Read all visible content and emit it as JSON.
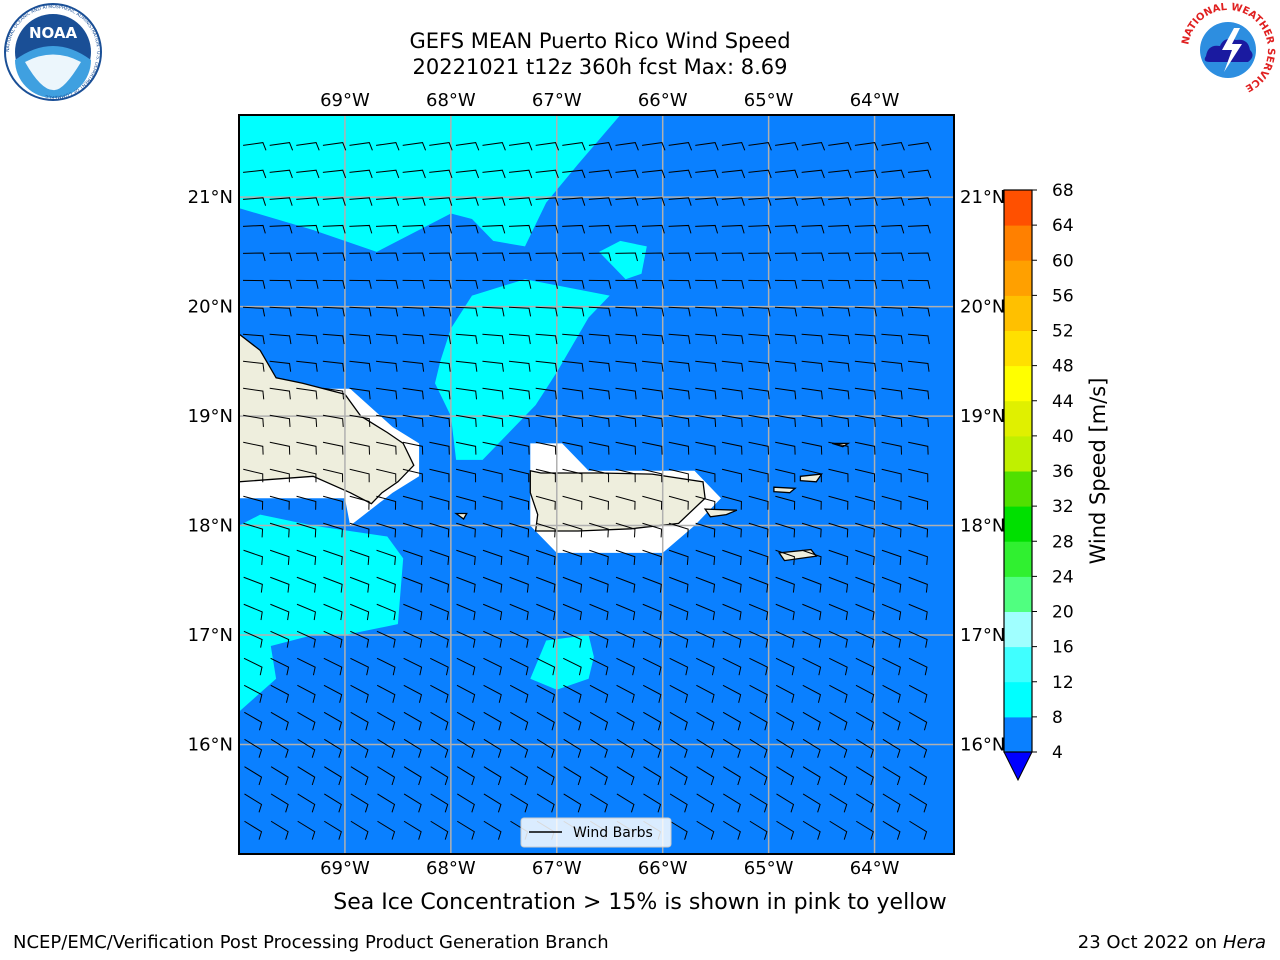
{
  "header": {
    "title_line1": "GEFS MEAN Puerto Rico Wind Speed",
    "title_line2": "20221021 t12z 360h fcst   Max: 8.69"
  },
  "logos": {
    "left": {
      "name": "noaa-logo",
      "text": "NOAA",
      "ring_text": "NATIONAL OCEANIC AND ATMOSPHERIC ADMINISTRATION · U.S. DEPARTMENT OF COMMERCE"
    },
    "right": {
      "name": "nws-logo",
      "ring_text": "NATIONAL WEATHER SERVICE"
    }
  },
  "map": {
    "extent": {
      "lon_min": -70.0,
      "lon_max": -63.25,
      "lat_min": 15.0,
      "lat_max": 21.75
    },
    "lon_ticks": [
      {
        "value": -69,
        "label": "69°W"
      },
      {
        "value": -68,
        "label": "68°W"
      },
      {
        "value": -67,
        "label": "67°W"
      },
      {
        "value": -66,
        "label": "66°W"
      },
      {
        "value": -65,
        "label": "65°W"
      },
      {
        "value": -64,
        "label": "64°W"
      }
    ],
    "lat_ticks": [
      {
        "value": 21,
        "label": "21°N"
      },
      {
        "value": 20,
        "label": "20°N"
      },
      {
        "value": 19,
        "label": "19°N"
      },
      {
        "value": 18,
        "label": "18°N"
      },
      {
        "value": 17,
        "label": "17°N"
      },
      {
        "value": 16,
        "label": "16°N"
      }
    ],
    "legend_label": "Wind Barbs",
    "colors": {
      "ocean": "#0a80ff",
      "cyan_zone": "#00ffff",
      "land": "#eeeedd",
      "coast": "#000000",
      "grid": "#b0b0b0"
    },
    "cyan_regions": [
      {
        "name": "cyan-region-north",
        "lonlat": [
          [
            -70,
            21.75
          ],
          [
            -66.4,
            21.75
          ],
          [
            -66.8,
            21.3
          ],
          [
            -67.1,
            20.95
          ],
          [
            -67.3,
            20.55
          ],
          [
            -67.6,
            20.6
          ],
          [
            -67.8,
            20.8
          ],
          [
            -68.0,
            20.85
          ],
          [
            -68.7,
            20.5
          ],
          [
            -69.3,
            20.7
          ],
          [
            -70,
            20.9
          ]
        ]
      },
      {
        "name": "cyan-region-central",
        "lonlat": [
          [
            -67.8,
            20.1
          ],
          [
            -67.3,
            20.25
          ],
          [
            -66.5,
            20.1
          ],
          [
            -66.7,
            19.9
          ],
          [
            -67.0,
            19.4
          ],
          [
            -67.2,
            19.1
          ],
          [
            -67.4,
            18.9
          ],
          [
            -67.7,
            18.6
          ],
          [
            -67.95,
            18.6
          ],
          [
            -68.0,
            19.0
          ],
          [
            -68.15,
            19.3
          ],
          [
            -68.1,
            19.5
          ],
          [
            -68.0,
            19.8
          ]
        ]
      },
      {
        "name": "cyan-region-small-east",
        "lonlat": [
          [
            -66.6,
            20.5
          ],
          [
            -66.4,
            20.6
          ],
          [
            -66.15,
            20.55
          ],
          [
            -66.2,
            20.3
          ],
          [
            -66.35,
            20.25
          ]
        ]
      },
      {
        "name": "cyan-region-southwest",
        "lonlat": [
          [
            -70,
            18.0
          ],
          [
            -69.8,
            18.1
          ],
          [
            -69.3,
            18.0
          ],
          [
            -68.6,
            17.9
          ],
          [
            -68.45,
            17.7
          ],
          [
            -68.5,
            17.1
          ],
          [
            -69.0,
            17.0
          ],
          [
            -69.3,
            17.0
          ],
          [
            -69.7,
            16.9
          ],
          [
            -69.65,
            16.6
          ],
          [
            -70,
            16.3
          ]
        ]
      },
      {
        "name": "cyan-region-south",
        "lonlat": [
          [
            -67.25,
            16.6
          ],
          [
            -67.1,
            16.95
          ],
          [
            -66.7,
            17.0
          ],
          [
            -66.65,
            16.8
          ],
          [
            -66.7,
            16.6
          ],
          [
            -67.0,
            16.5
          ]
        ]
      }
    ],
    "white_regions": [
      {
        "name": "white-zone-hispaniola",
        "lonlat": [
          [
            -70,
            19.25
          ],
          [
            -68.95,
            19.25
          ],
          [
            -68.55,
            18.9
          ],
          [
            -68.3,
            18.75
          ],
          [
            -68.3,
            18.45
          ],
          [
            -68.55,
            18.3
          ],
          [
            -68.95,
            18.0
          ],
          [
            -69.0,
            18.25
          ],
          [
            -70,
            18.25
          ]
        ]
      },
      {
        "name": "white-zone-puerto-rico",
        "lonlat": [
          [
            -67.25,
            18.75
          ],
          [
            -66.95,
            18.75
          ],
          [
            -66.7,
            18.5
          ],
          [
            -65.7,
            18.5
          ],
          [
            -65.45,
            18.25
          ],
          [
            -65.7,
            18.0
          ],
          [
            -66.0,
            17.75
          ],
          [
            -67.0,
            17.75
          ],
          [
            -67.25,
            18.0
          ]
        ]
      }
    ],
    "land_regions": [
      {
        "name": "hispaniola-land",
        "lonlat": [
          [
            -70,
            19.75
          ],
          [
            -69.8,
            19.6
          ],
          [
            -69.65,
            19.35
          ],
          [
            -69.4,
            19.3
          ],
          [
            -69.0,
            19.2
          ],
          [
            -68.85,
            19.0
          ],
          [
            -68.6,
            18.85
          ],
          [
            -68.45,
            18.75
          ],
          [
            -68.35,
            18.55
          ],
          [
            -68.5,
            18.4
          ],
          [
            -68.65,
            18.3
          ],
          [
            -68.75,
            18.2
          ],
          [
            -68.95,
            18.3
          ],
          [
            -69.3,
            18.45
          ],
          [
            -70,
            18.4
          ]
        ]
      },
      {
        "name": "puerto-rico-land",
        "lonlat": [
          [
            -67.25,
            18.5
          ],
          [
            -67.15,
            18.48
          ],
          [
            -66.6,
            18.48
          ],
          [
            -66.1,
            18.47
          ],
          [
            -65.62,
            18.4
          ],
          [
            -65.6,
            18.25
          ],
          [
            -65.85,
            18.02
          ],
          [
            -66.3,
            17.97
          ],
          [
            -66.8,
            17.95
          ],
          [
            -67.2,
            17.95
          ],
          [
            -67.18,
            18.1
          ],
          [
            -67.25,
            18.3
          ]
        ]
      },
      {
        "name": "vieques-island",
        "lonlat": [
          [
            -65.6,
            18.15
          ],
          [
            -65.3,
            18.14
          ],
          [
            -65.4,
            18.1
          ],
          [
            -65.55,
            18.08
          ]
        ]
      },
      {
        "name": "st-croix-island",
        "lonlat": [
          [
            -64.9,
            17.75
          ],
          [
            -64.6,
            17.78
          ],
          [
            -64.55,
            17.72
          ],
          [
            -64.85,
            17.68
          ]
        ]
      },
      {
        "name": "st-thomas-island",
        "lonlat": [
          [
            -64.95,
            18.35
          ],
          [
            -64.75,
            18.34
          ],
          [
            -64.8,
            18.3
          ],
          [
            -64.95,
            18.31
          ]
        ]
      },
      {
        "name": "tortola-island",
        "lonlat": [
          [
            -64.7,
            18.45
          ],
          [
            -64.5,
            18.47
          ],
          [
            -64.55,
            18.4
          ],
          [
            -64.7,
            18.41
          ]
        ]
      },
      {
        "name": "mona-island",
        "lonlat": [
          [
            -67.95,
            18.11
          ],
          [
            -67.85,
            18.11
          ],
          [
            -67.88,
            18.06
          ]
        ]
      },
      {
        "name": "anegada-island",
        "lonlat": [
          [
            -64.4,
            18.75
          ],
          [
            -64.25,
            18.75
          ],
          [
            -64.3,
            18.72
          ]
        ]
      }
    ]
  },
  "colorbar": {
    "label": "Wind Speed [m/s]",
    "levels": [
      4,
      8,
      12,
      16,
      20,
      24,
      28,
      32,
      36,
      40,
      44,
      48,
      52,
      56,
      60,
      64,
      68
    ],
    "colors": [
      "#0a80ff",
      "#00ffff",
      "#40ffff",
      "#a0ffff",
      "#50ff80",
      "#30f030",
      "#00e000",
      "#50e000",
      "#c0f000",
      "#e0f000",
      "#ffff00",
      "#ffe000",
      "#ffc000",
      "#ffa000",
      "#ff8000",
      "#ff5000",
      "#ff2000",
      "#ff0000"
    ],
    "under_color": "#0000ff"
  },
  "caption": "Sea Ice Concentration > 15% is shown in pink to yellow",
  "footer": {
    "left": "NCEP/EMC/Verification Post Processing Product Generation Branch",
    "right_date": "23 Oct 2022 on ",
    "right_host": "Hera"
  }
}
